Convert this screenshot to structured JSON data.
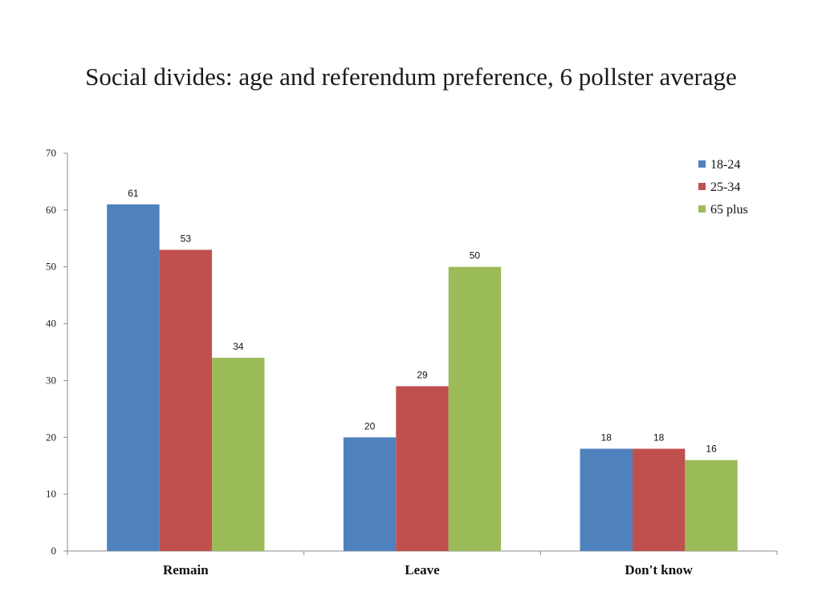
{
  "chart_data": {
    "type": "bar",
    "title": "Social divides: age and referendum preference, 6 pollster average",
    "xlabel": "",
    "ylabel": "",
    "categories": [
      "Remain",
      "Leave",
      "Don't know"
    ],
    "series": [
      {
        "name": "18-24",
        "values": [
          61,
          20,
          18
        ],
        "color": "#4F81BD"
      },
      {
        "name": "25-34",
        "values": [
          53,
          29,
          18
        ],
        "color": "#C0504D"
      },
      {
        "name": "65 plus",
        "values": [
          34,
          50,
          16
        ],
        "color": "#9BBB59"
      }
    ],
    "ylim": [
      0,
      70
    ],
    "yticks": [
      "0",
      "10",
      "20",
      "30",
      "40",
      "50",
      "60",
      "70"
    ],
    "data_labels": true,
    "grid": false,
    "legend_position": "top-right"
  }
}
